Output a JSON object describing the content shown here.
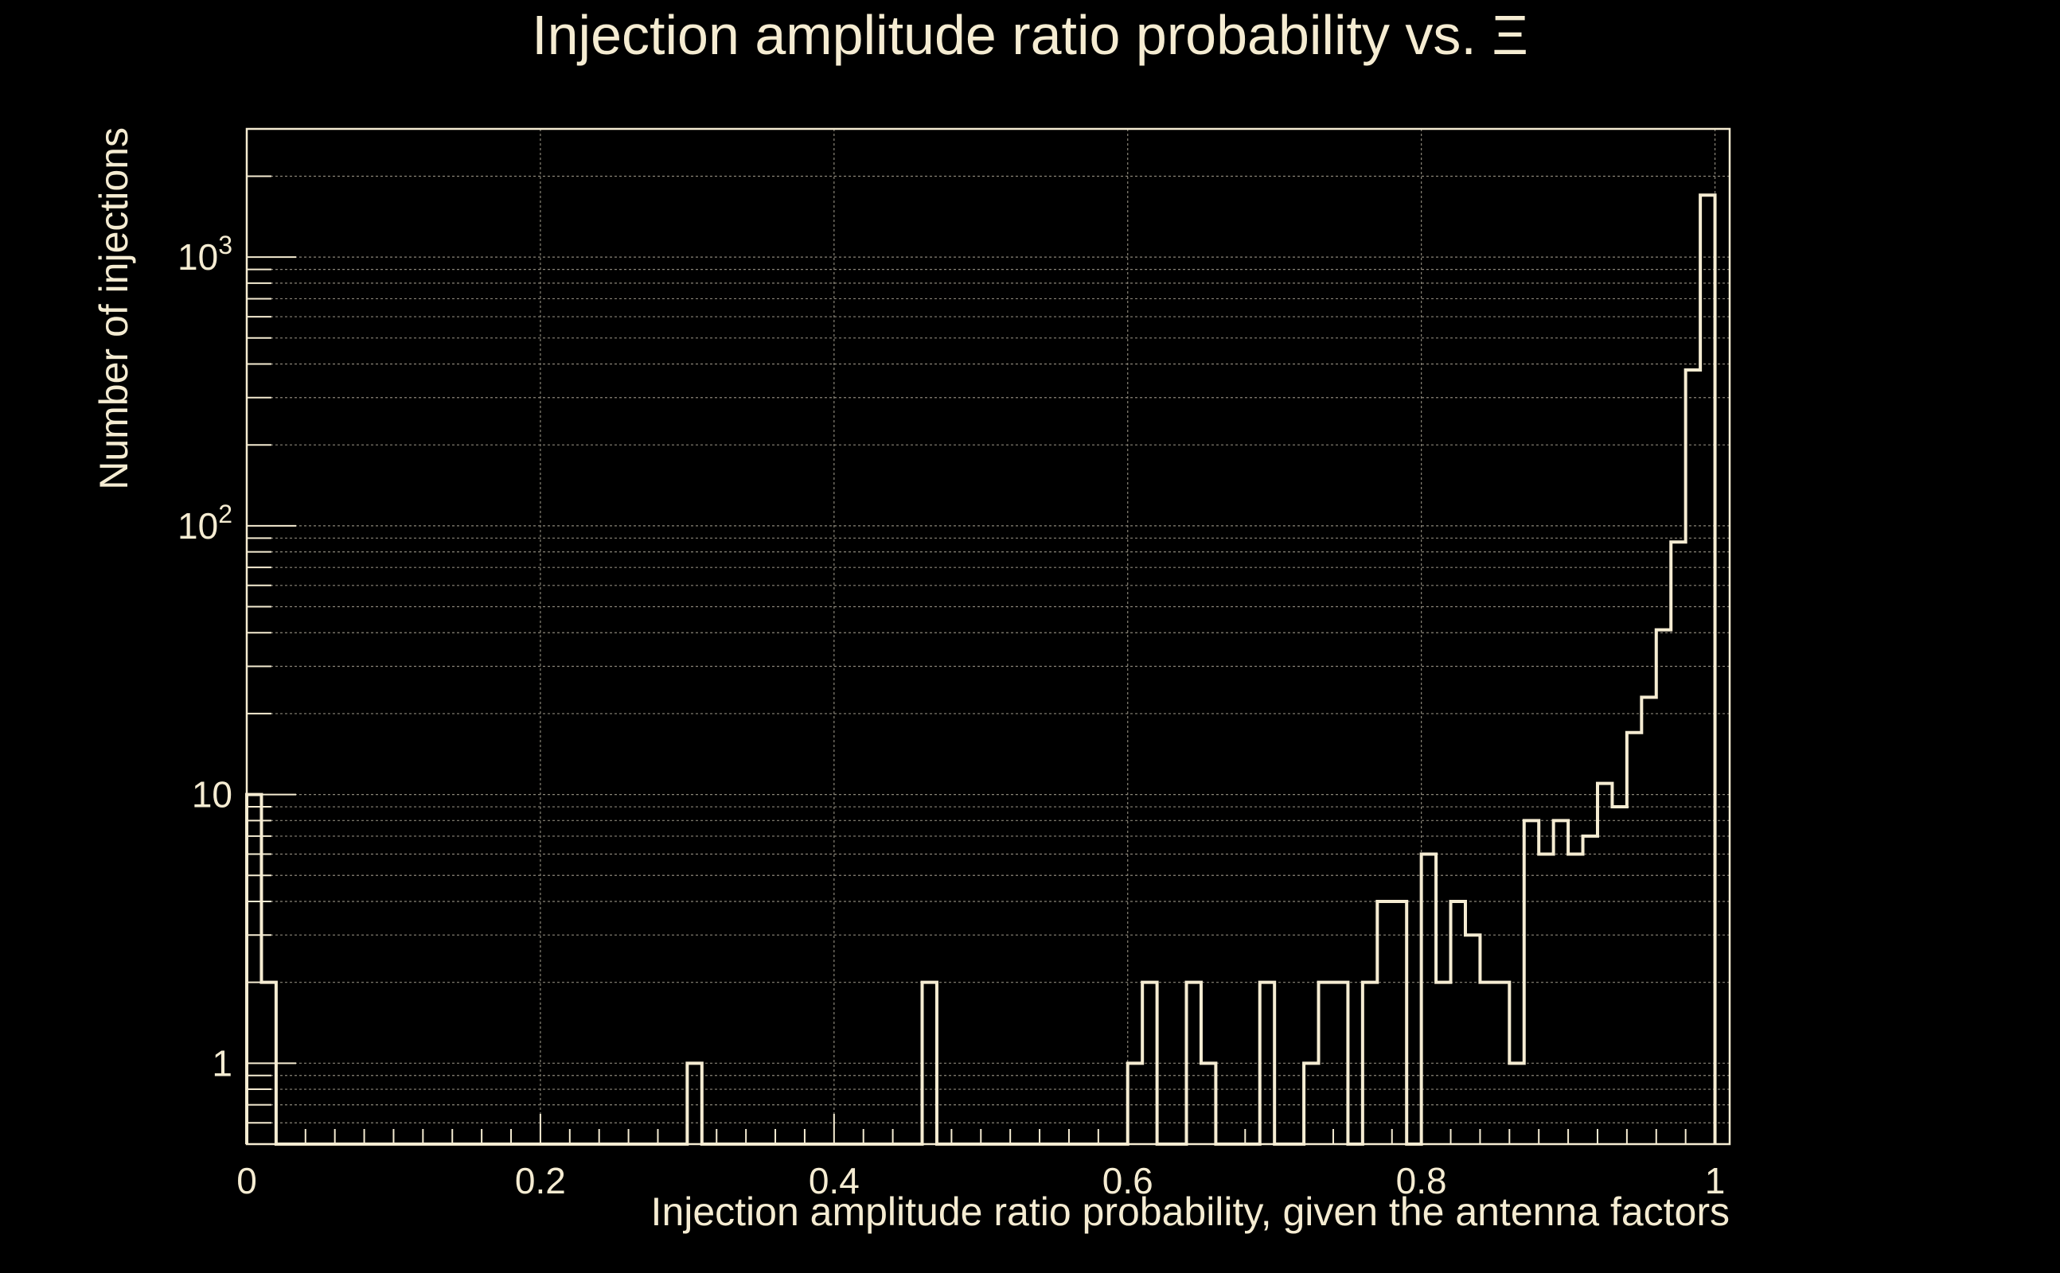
{
  "chart_data": {
    "type": "histogram",
    "title": "Injection amplitude ratio probability vs.  Ξ",
    "xlabel": "Injection amplitude ratio probability, given the antenna factors",
    "ylabel": "Number of injections",
    "xlim": [
      0,
      1.01
    ],
    "ylim": [
      0.5,
      3000
    ],
    "yscale": "log",
    "grid": true,
    "colors": {
      "background": "#000000",
      "foreground": "#f5ecd2",
      "grid": "#8a8578"
    },
    "x_ticks": [
      {
        "value": 0,
        "label": "0"
      },
      {
        "value": 0.2,
        "label": "0.2"
      },
      {
        "value": 0.4,
        "label": "0.4"
      },
      {
        "value": 0.6,
        "label": "0.6"
      },
      {
        "value": 0.8,
        "label": "0.8"
      },
      {
        "value": 1,
        "label": "1"
      }
    ],
    "y_ticks": [
      {
        "value": 1,
        "base": "1",
        "exp": ""
      },
      {
        "value": 10,
        "base": "10",
        "exp": ""
      },
      {
        "value": 100,
        "base": "10",
        "exp": "2"
      },
      {
        "value": 1000,
        "base": "10",
        "exp": "3"
      }
    ],
    "bins": [
      {
        "x0": 0.0,
        "x1": 0.01,
        "count": 10
      },
      {
        "x0": 0.01,
        "x1": 0.02,
        "count": 2
      },
      {
        "x0": 0.3,
        "x1": 0.31,
        "count": 1
      },
      {
        "x0": 0.46,
        "x1": 0.47,
        "count": 2
      },
      {
        "x0": 0.6,
        "x1": 0.61,
        "count": 1
      },
      {
        "x0": 0.61,
        "x1": 0.62,
        "count": 2
      },
      {
        "x0": 0.64,
        "x1": 0.65,
        "count": 2
      },
      {
        "x0": 0.65,
        "x1": 0.66,
        "count": 1
      },
      {
        "x0": 0.69,
        "x1": 0.7,
        "count": 2
      },
      {
        "x0": 0.72,
        "x1": 0.73,
        "count": 1
      },
      {
        "x0": 0.73,
        "x1": 0.75,
        "count": 2
      },
      {
        "x0": 0.76,
        "x1": 0.77,
        "count": 2
      },
      {
        "x0": 0.77,
        "x1": 0.79,
        "count": 4
      },
      {
        "x0": 0.8,
        "x1": 0.81,
        "count": 6
      },
      {
        "x0": 0.81,
        "x1": 0.82,
        "count": 2
      },
      {
        "x0": 0.82,
        "x1": 0.83,
        "count": 4
      },
      {
        "x0": 0.83,
        "x1": 0.84,
        "count": 3
      },
      {
        "x0": 0.84,
        "x1": 0.86,
        "count": 2
      },
      {
        "x0": 0.86,
        "x1": 0.87,
        "count": 1
      },
      {
        "x0": 0.87,
        "x1": 0.88,
        "count": 8
      },
      {
        "x0": 0.88,
        "x1": 0.89,
        "count": 6
      },
      {
        "x0": 0.89,
        "x1": 0.9,
        "count": 8
      },
      {
        "x0": 0.9,
        "x1": 0.91,
        "count": 6
      },
      {
        "x0": 0.91,
        "x1": 0.92,
        "count": 7
      },
      {
        "x0": 0.92,
        "x1": 0.93,
        "count": 11
      },
      {
        "x0": 0.93,
        "x1": 0.94,
        "count": 9
      },
      {
        "x0": 0.94,
        "x1": 0.95,
        "count": 17
      },
      {
        "x0": 0.95,
        "x1": 0.96,
        "count": 23
      },
      {
        "x0": 0.96,
        "x1": 0.97,
        "count": 41
      },
      {
        "x0": 0.97,
        "x1": 0.98,
        "count": 87
      },
      {
        "x0": 0.98,
        "x1": 0.99,
        "count": 380
      },
      {
        "x0": 0.99,
        "x1": 1.0,
        "count": 1700
      }
    ]
  }
}
